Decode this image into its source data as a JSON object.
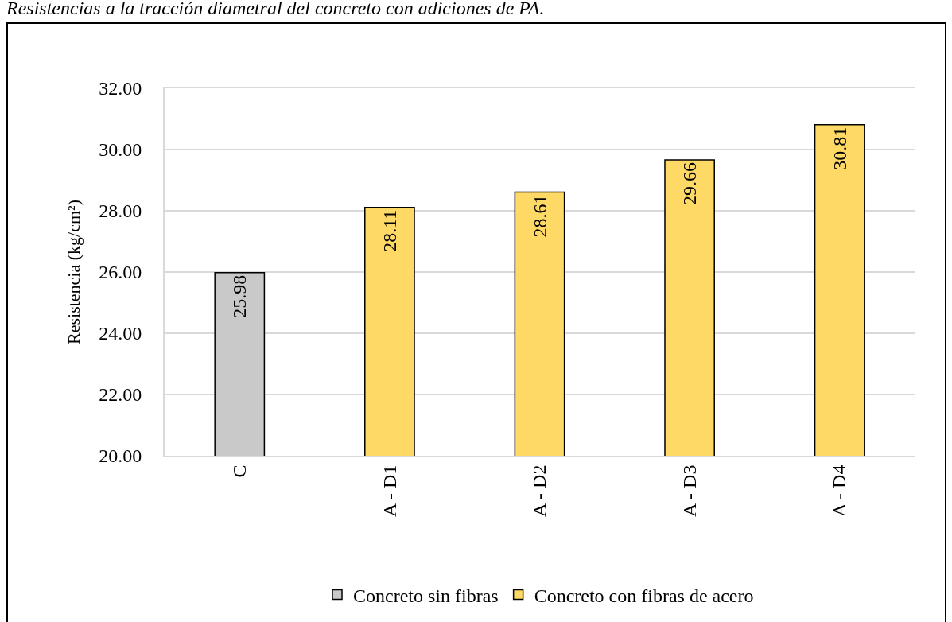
{
  "chart_data": {
    "type": "bar",
    "title": "Resistencias a la tracción diametral del concreto con adiciones de PA.",
    "ylabel": "Resistencia (kg/cm²)",
    "categories": [
      "C",
      "A - D1",
      "A - D2",
      "A - D3",
      "A - D4"
    ],
    "series": [
      {
        "name": "Concreto sin fibras",
        "color": "#c9c9c9",
        "values": [
          25.98,
          null,
          null,
          null,
          null
        ]
      },
      {
        "name": "Concreto con fibras de acero",
        "color": "#ffd966",
        "values": [
          null,
          28.11,
          28.61,
          29.66,
          30.81
        ]
      }
    ],
    "ylim": [
      20,
      32
    ],
    "yticks": [
      {
        "value": 20,
        "label": "20.00"
      },
      {
        "value": 22,
        "label": "22.00"
      },
      {
        "value": 24,
        "label": "24.00"
      },
      {
        "value": 26,
        "label": "26.00"
      },
      {
        "value": 28,
        "label": "28.00"
      },
      {
        "value": 30,
        "label": "30.00"
      },
      {
        "value": 32,
        "label": "32.00"
      }
    ],
    "grid": "y",
    "legend": "bottom",
    "data_labels": true
  }
}
